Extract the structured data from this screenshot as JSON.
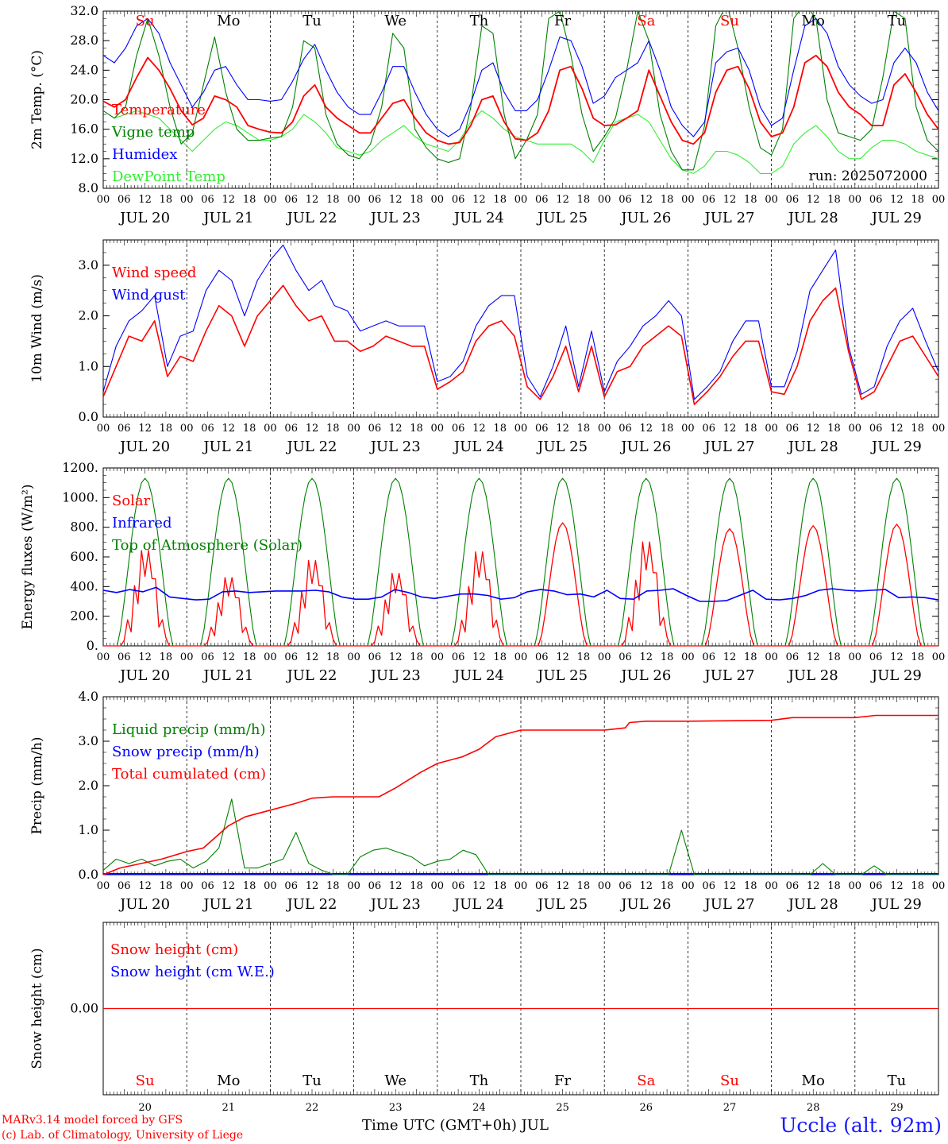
{
  "footer": {
    "credit_line1": "MARv3.14 model forced by GFS",
    "credit_line2": "(c) Lab. of Climatology, University of Liege",
    "x_title": "Time UTC (GMT+0h) JUL",
    "station": "Uccle (alt. 92m)"
  },
  "colors": {
    "red": "#ff0000",
    "dark_green": "#008000",
    "blue": "#0000ff",
    "light_green": "#33ee33",
    "black": "#000000"
  },
  "weekdays": [
    {
      "label": "Su",
      "color": "#ff0000"
    },
    {
      "label": "Mo",
      "color": "#000000"
    },
    {
      "label": "Tu",
      "color": "#000000"
    },
    {
      "label": "We",
      "color": "#000000"
    },
    {
      "label": "Th",
      "color": "#000000"
    },
    {
      "label": "Fr",
      "color": "#000000"
    },
    {
      "label": "Sa",
      "color": "#ff0000"
    },
    {
      "label": "Su",
      "color": "#ff0000"
    },
    {
      "label": "Mo",
      "color": "#000000"
    },
    {
      "label": "Tu",
      "color": "#000000"
    }
  ],
  "date_labels": [
    "JUL 20",
    "JUL 21",
    "JUL 22",
    "JUL 23",
    "JUL 24",
    "JUL 25",
    "JUL 26",
    "JUL 27",
    "JUL 28",
    "JUL 29"
  ],
  "hour_ticks": [
    "00",
    "06",
    "12",
    "18"
  ],
  "last_hour_tick": "00",
  "day_numbers": [
    "20",
    "21",
    "22",
    "23",
    "24",
    "25",
    "26",
    "27",
    "28",
    "29"
  ],
  "chart_data": [
    {
      "type": "line",
      "ylabel": "2m Temp. (°C)",
      "ylim": [
        8,
        32
      ],
      "yticks": [
        "8.0",
        "12.0",
        "16.0",
        "20.0",
        "24.0",
        "28.0",
        "32.0"
      ],
      "ytick_values": [
        8,
        12,
        16,
        20,
        24,
        28,
        32
      ],
      "annotation": "run: 2025072000",
      "x": "hours from JUL 20 00 UTC, 3-hourly",
      "series": [
        {
          "name": "Temperature",
          "color": "#ff0000",
          "values": [
            19.8,
            19.0,
            20.0,
            23.0,
            25.7,
            24.0,
            21.5,
            18.5,
            16.6,
            17.5,
            20.5,
            20.0,
            19.0,
            16.5,
            16.0,
            15.6,
            15.5,
            17.0,
            20.5,
            22.0,
            19.0,
            17.5,
            16.5,
            15.5,
            15.5,
            17.5,
            19.5,
            20.0,
            17.5,
            15.5,
            14.5,
            14.0,
            14.2,
            16.5,
            20.0,
            20.5,
            17.0,
            14.7,
            14.5,
            15.5,
            18.5,
            24.0,
            24.5,
            21.5,
            17.5,
            16.5,
            16.6,
            17.5,
            18.5,
            24.0,
            20.5,
            17.0,
            14.5,
            14.0,
            15.5,
            21.0,
            24.0,
            24.5,
            21.5,
            17.0,
            15.0,
            15.5,
            19.0,
            25.0,
            26.0,
            24.5,
            21.0,
            19.0,
            18.0,
            16.5,
            16.5,
            22.0,
            23.5,
            21.0,
            18.0,
            16.0
          ]
        },
        {
          "name": "Vigne temp",
          "color": "#008000",
          "values": [
            18.5,
            17.5,
            19.0,
            26.0,
            31.0,
            26.0,
            19.0,
            14.0,
            15.5,
            22.0,
            28.5,
            21.0,
            16.0,
            14.5,
            14.5,
            14.8,
            15.0,
            19.0,
            28.0,
            27.0,
            18.0,
            14.0,
            12.5,
            12.0,
            14.0,
            19.0,
            29.0,
            27.0,
            16.0,
            13.5,
            12.0,
            11.5,
            12.0,
            19.0,
            30.0,
            29.0,
            18.0,
            12.0,
            14.5,
            18.0,
            31.0,
            32.0,
            26.0,
            18.0,
            13.0,
            15.0,
            17.5,
            24.0,
            32.0,
            28.0,
            18.0,
            13.0,
            10.5,
            10.5,
            16.5,
            30.0,
            33.0,
            27.0,
            19.0,
            13.5,
            12.5,
            16.0,
            31.0,
            33.0,
            31.0,
            20.0,
            15.5,
            15.0,
            14.5,
            16.0,
            23.0,
            32.0,
            31.0,
            19.0,
            14.5,
            13.0
          ]
        },
        {
          "name": "Humidex",
          "color": "#0000ff",
          "values": [
            26.0,
            25.0,
            27.0,
            30.0,
            31.0,
            29.0,
            25.0,
            22.0,
            19.0,
            21.0,
            24.0,
            24.5,
            22.0,
            20.0,
            20.0,
            19.8,
            20.0,
            22.5,
            25.5,
            27.5,
            24.0,
            21.0,
            19.0,
            18.0,
            18.0,
            21.0,
            24.5,
            24.5,
            21.0,
            18.0,
            16.0,
            15.0,
            16.0,
            19.5,
            24.0,
            25.0,
            21.0,
            18.5,
            18.5,
            20.0,
            24.0,
            28.5,
            28.0,
            24.5,
            19.5,
            20.5,
            23.0,
            24.0,
            25.0,
            28.0,
            24.0,
            19.0,
            16.5,
            15.0,
            17.0,
            25.0,
            26.5,
            27.0,
            24.0,
            19.0,
            16.5,
            17.5,
            24.0,
            30.0,
            31.0,
            29.0,
            24.5,
            22.0,
            20.5,
            19.5,
            20.0,
            25.0,
            27.0,
            25.0,
            21.0,
            18.5
          ]
        },
        {
          "name": "DewPoint Temp",
          "color": "#33ee33",
          "values": [
            18.5,
            17.5,
            18.0,
            18.5,
            18.0,
            17.5,
            16.0,
            14.5,
            13.0,
            14.5,
            16.0,
            17.0,
            16.5,
            15.5,
            14.5,
            14.5,
            15.0,
            16.0,
            18.0,
            17.0,
            15.5,
            13.5,
            13.0,
            12.5,
            13.0,
            14.5,
            15.5,
            16.5,
            15.0,
            14.0,
            13.5,
            13.0,
            14.5,
            17.0,
            18.5,
            17.5,
            16.0,
            15.0,
            14.5,
            14.0,
            14.0,
            14.0,
            14.0,
            13.0,
            11.5,
            14.5,
            17.0,
            17.5,
            18.0,
            17.0,
            14.5,
            12.0,
            10.5,
            10.0,
            11.0,
            13.0,
            13.0,
            12.5,
            11.5,
            10.0,
            10.0,
            11.0,
            14.0,
            15.5,
            16.5,
            15.0,
            13.0,
            12.0,
            12.0,
            13.5,
            14.5,
            14.5,
            14.0,
            13.0,
            12.5,
            12.0
          ]
        }
      ]
    },
    {
      "type": "line",
      "ylabel": "10m Wind (m/s)",
      "ylim": [
        0,
        3.5
      ],
      "yticks": [
        "0.0",
        "1.0",
        "2.0",
        "3.0"
      ],
      "ytick_values": [
        0,
        1,
        2,
        3
      ],
      "series": [
        {
          "name": "Wind speed",
          "color": "#ff0000",
          "values": [
            0.4,
            1.0,
            1.6,
            1.5,
            1.9,
            0.8,
            1.2,
            1.1,
            1.7,
            2.2,
            2.0,
            1.4,
            2.0,
            2.3,
            2.6,
            2.2,
            1.9,
            2.0,
            1.5,
            1.5,
            1.3,
            1.4,
            1.6,
            1.5,
            1.4,
            1.4,
            0.55,
            0.7,
            0.9,
            1.5,
            1.8,
            1.9,
            1.6,
            0.6,
            0.35,
            0.8,
            1.4,
            0.5,
            1.4,
            0.4,
            0.9,
            1.0,
            1.4,
            1.6,
            1.8,
            1.6,
            0.25,
            0.5,
            0.8,
            1.2,
            1.5,
            1.5,
            0.5,
            0.45,
            1.0,
            1.9,
            2.3,
            2.55,
            1.3,
            0.35,
            0.5,
            1.0,
            1.5,
            1.6,
            1.2,
            0.8
          ]
        },
        {
          "name": "Wind gust",
          "color": "#0000ff",
          "values": [
            0.5,
            1.4,
            1.9,
            2.1,
            2.4,
            1.0,
            1.6,
            1.7,
            2.5,
            2.9,
            2.7,
            2.0,
            2.7,
            3.1,
            3.4,
            2.9,
            2.5,
            2.7,
            2.2,
            2.1,
            1.7,
            1.8,
            1.9,
            1.8,
            1.8,
            1.8,
            0.7,
            0.8,
            1.1,
            1.8,
            2.2,
            2.4,
            2.4,
            0.8,
            0.4,
            1.0,
            1.8,
            0.6,
            1.7,
            0.5,
            1.1,
            1.4,
            1.8,
            2.0,
            2.3,
            2.0,
            0.35,
            0.6,
            0.9,
            1.5,
            1.9,
            1.9,
            0.6,
            0.6,
            1.3,
            2.5,
            2.9,
            3.3,
            1.4,
            0.45,
            0.6,
            1.4,
            1.9,
            2.15,
            1.5,
            0.9
          ]
        }
      ]
    },
    {
      "type": "line",
      "ylabel": "Energy fluxes (W/m²)",
      "ylim": [
        0,
        1200
      ],
      "yticks": [
        "0.",
        "200.",
        "400.",
        "600.",
        "800.",
        "1000.",
        "1200."
      ],
      "ytick_values": [
        0,
        200,
        400,
        600,
        800,
        1000,
        1200
      ],
      "series": [
        {
          "name": "Solar",
          "color": "#ff0000",
          "peaks": [
            670,
            480,
            600,
            510,
            660,
            830,
            730,
            790,
            810,
            820
          ]
        },
        {
          "name": "Infrared",
          "color": "#0000ff",
          "values": [
            375,
            360,
            380,
            365,
            395,
            330,
            320,
            310,
            315,
            365,
            370,
            360,
            365,
            370,
            370,
            370,
            375,
            365,
            330,
            315,
            315,
            330,
            380,
            360,
            330,
            320,
            335,
            350,
            350,
            340,
            315,
            325,
            365,
            380,
            370,
            345,
            350,
            330,
            375,
            320,
            315,
            370,
            375,
            385,
            340,
            300,
            300,
            305,
            340,
            375,
            315,
            310,
            320,
            340,
            375,
            385,
            375,
            370,
            375,
            380,
            325,
            330,
            325,
            310
          ]
        },
        {
          "name": "Top of Atmosphere (Solar)",
          "color": "#008000",
          "peak": 1130
        }
      ]
    },
    {
      "type": "line",
      "ylabel": "Precip (mm/h)",
      "ylim": [
        0,
        4
      ],
      "yticks": [
        "0.0",
        "1.0",
        "2.0",
        "3.0",
        "4.0"
      ],
      "ytick_values": [
        0,
        1,
        2,
        3,
        4
      ],
      "series": [
        {
          "name": "Liquid precip (mm/h)",
          "color": "#008000",
          "values": [
            0.1,
            0.35,
            0.25,
            0.35,
            0.2,
            0.3,
            0.35,
            0.15,
            0.3,
            0.6,
            1.7,
            0.15,
            0.15,
            0.25,
            0.35,
            0.95,
            0.25,
            0.1,
            0.0,
            0.0,
            0.4,
            0.55,
            0.6,
            0.5,
            0.4,
            0.2,
            0.3,
            0.35,
            0.55,
            0.45,
            0.0,
            0.0,
            0.0,
            0.0,
            0.0,
            0.0,
            0.0,
            0.0,
            0.0,
            0.0,
            0.0,
            0.0,
            0.0,
            0.0,
            0.0,
            1.0,
            0.0,
            0.0,
            0.0,
            0.0,
            0.0,
            0.0,
            0.0,
            0.0,
            0.0,
            0.0,
            0.25,
            0.0,
            0.0,
            0.0,
            0.2,
            0.0,
            0.0,
            0.0,
            0.0,
            0.0
          ]
        },
        {
          "name": "Snow precip (mm/h)",
          "color": "#0000ff",
          "values": [
            0
          ]
        },
        {
          "name": "Total cumulated (cm)",
          "color": "#ff0000",
          "x_days": [
            0,
            0.2,
            0.7,
            1.0,
            1.2,
            1.5,
            1.7,
            2.0,
            2.3,
            2.5,
            2.75,
            3.0,
            3.3,
            3.5,
            3.8,
            4.0,
            4.3,
            4.5,
            4.7,
            5.0,
            6.0,
            6.25,
            6.3,
            6.5,
            7.0,
            8.0,
            8.25,
            9.0,
            9.25,
            10.0
          ],
          "values": [
            0.0,
            0.15,
            0.35,
            0.52,
            0.6,
            1.1,
            1.3,
            1.45,
            1.6,
            1.72,
            1.75,
            1.75,
            1.75,
            1.95,
            2.3,
            2.5,
            2.65,
            2.82,
            3.1,
            3.25,
            3.25,
            3.3,
            3.42,
            3.45,
            3.45,
            3.47,
            3.53,
            3.53,
            3.58,
            3.58
          ]
        }
      ]
    },
    {
      "type": "line",
      "ylabel": "Snow height (cm)",
      "ylim": [
        -1,
        1
      ],
      "yticks": [
        "0.00"
      ],
      "ytick_values": [
        0
      ],
      "series": [
        {
          "name": "Snow height (cm)",
          "color": "#ff0000",
          "values": [
            0,
            0
          ]
        },
        {
          "name": "Snow height (cm W.E.)",
          "color": "#0000ff",
          "values": [
            0,
            0
          ]
        }
      ]
    }
  ]
}
